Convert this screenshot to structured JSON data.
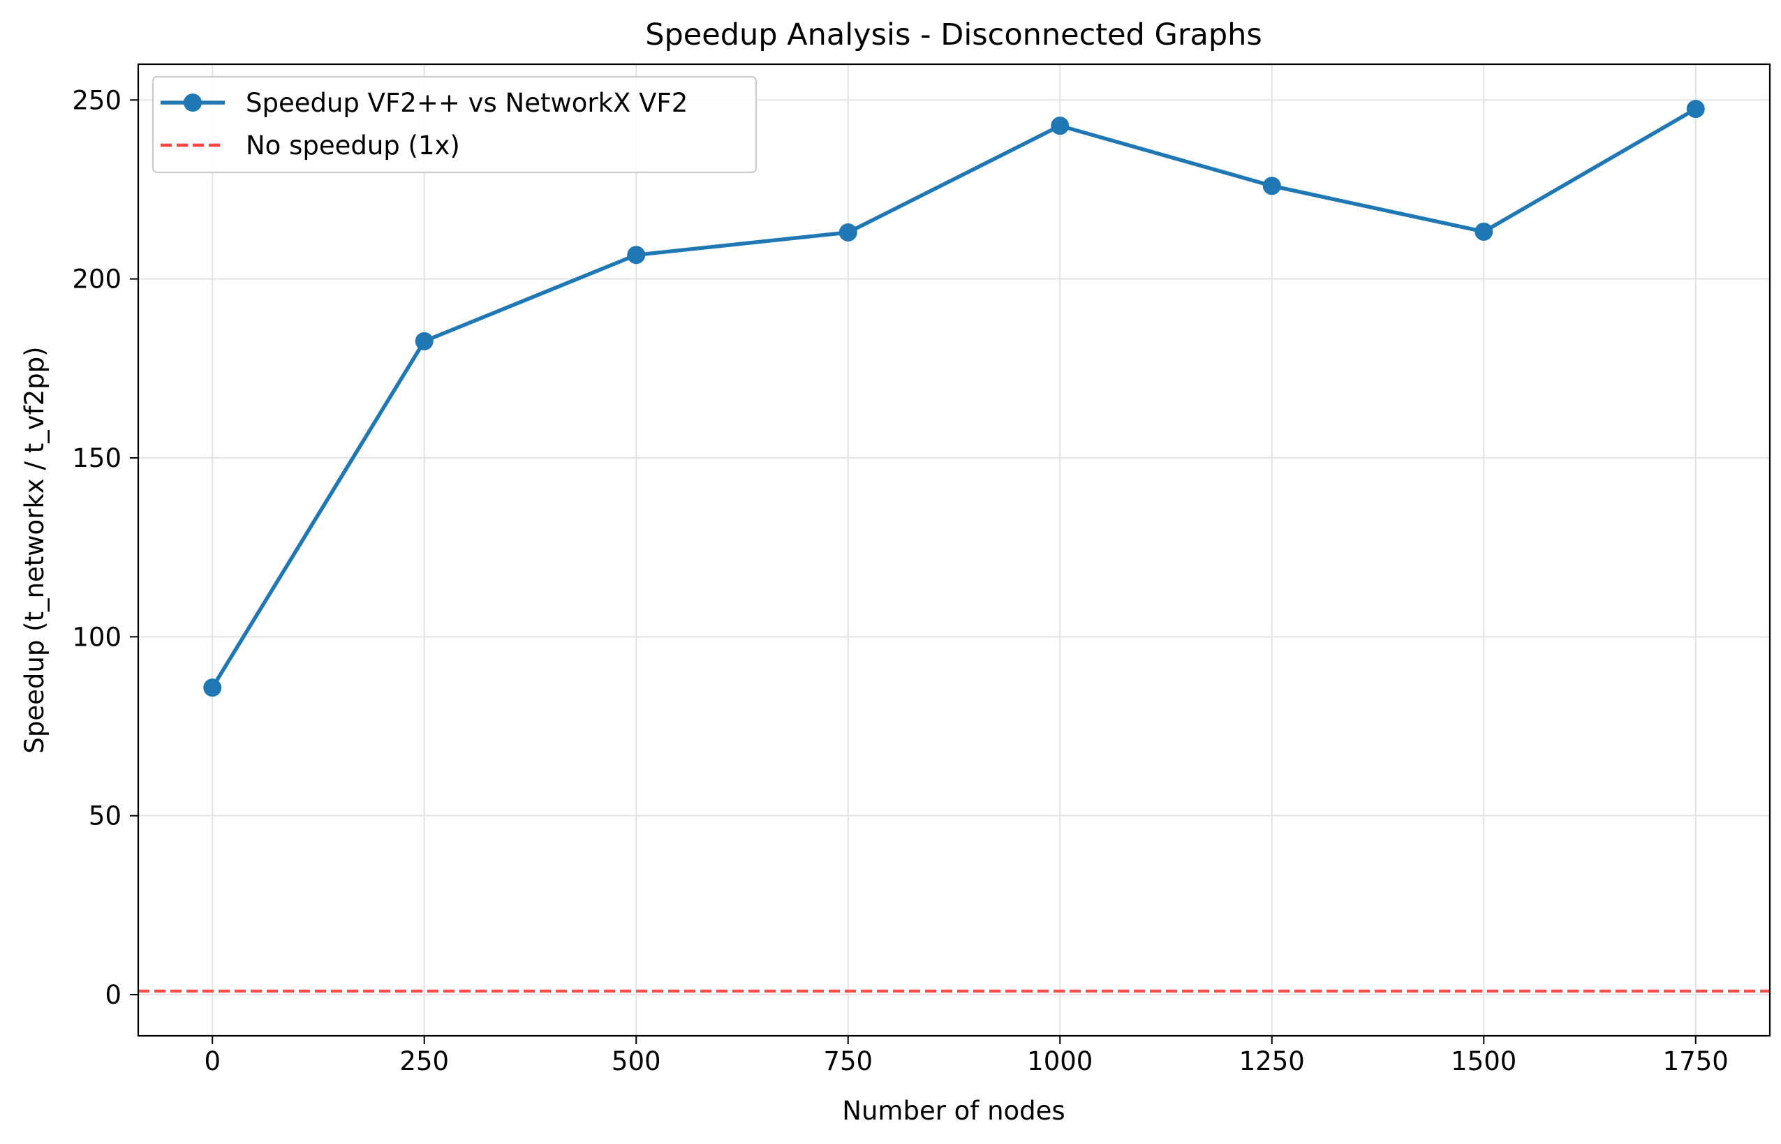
{
  "chart_data": {
    "type": "line",
    "title": "Speedup Analysis - Disconnected Graphs",
    "xlabel": "Number of nodes",
    "ylabel": "Speedup (t_networkx / t_vf2pp)",
    "xlim": [
      -87.5,
      1837.5
    ],
    "ylim": [
      -11.5,
      260
    ],
    "xticks": [
      0,
      250,
      500,
      750,
      1000,
      1250,
      1500,
      1750
    ],
    "xtick_labels": [
      "0",
      "250",
      "500",
      "750",
      "1000",
      "1250",
      "1500",
      "1750"
    ],
    "yticks": [
      0,
      50,
      100,
      150,
      200,
      250
    ],
    "ytick_labels": [
      "0",
      "50",
      "100",
      "150",
      "200",
      "250"
    ],
    "grid": true,
    "legend_position": "top-left",
    "series": [
      {
        "name": "Speedup VF2++ vs NetworkX VF2",
        "color": "#1f77b4",
        "style": "solid",
        "marker": "circle",
        "x": [
          0,
          250,
          500,
          750,
          1000,
          1250,
          1500,
          1750
        ],
        "y": [
          85.8,
          182.6,
          206.7,
          213.0,
          242.8,
          226.0,
          213.2,
          247.5
        ]
      },
      {
        "name": "No speedup (1x)",
        "color": "#ff4444",
        "style": "dashed",
        "hline": 1
      }
    ]
  }
}
